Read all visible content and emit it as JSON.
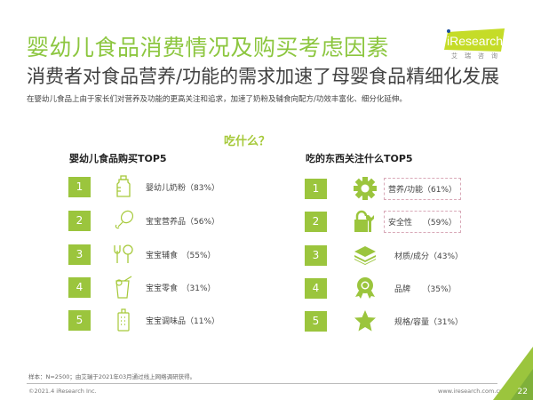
{
  "header": {
    "title": "婴幼儿食品消费情况及购买考虑因素",
    "subtitle": "消费者对食品营养/功能的需求加速了母婴食品精细化发展",
    "description": "在婴幼儿食品上由于家长们对营养及功能的更高关注和追求，加速了奶粉及辅食向配方/功效丰富化、细分化延伸。"
  },
  "logo": {
    "text": "iResearch",
    "sub": "艾瑞咨询"
  },
  "question": "吃什么？",
  "left": {
    "heading": "婴幼儿食品购买TOP5",
    "items": [
      {
        "rank": "1",
        "label": "婴幼儿奶粉（83%）",
        "icon": "baby-bottle-icon"
      },
      {
        "rank": "2",
        "label": "宝宝营养品（56%）",
        "icon": "drumstick-icon"
      },
      {
        "rank": "3",
        "label": "宝宝辅食　（55%）",
        "icon": "fork-spoon-icon"
      },
      {
        "rank": "4",
        "label": "宝宝零食　（31%）",
        "icon": "drink-cup-icon"
      },
      {
        "rank": "5",
        "label": "宝宝调味品（11%）",
        "icon": "grater-icon"
      }
    ]
  },
  "right": {
    "heading": "吃的东西关注什么TOP5",
    "items": [
      {
        "rank": "1",
        "label": "营养/功能（61%）",
        "icon": "gear-icon"
      },
      {
        "rank": "2",
        "label": "安全性　 （59%）",
        "icon": "lock-wrench-icon"
      },
      {
        "rank": "3",
        "label": "材质/成分（43%）",
        "icon": "layers-icon"
      },
      {
        "rank": "4",
        "label": "品牌　　（35%）",
        "icon": "award-badge-icon"
      },
      {
        "rank": "5",
        "label": "规格/容量（31%）",
        "icon": "star-icon"
      }
    ]
  },
  "footer": {
    "note": "样本：N=2500；由艾瑞于2021年03月通过线上网络调研获得。",
    "copyright": "©2021.4 iResearch Inc.",
    "url": "www.iresearch.com.cn",
    "page": "22"
  },
  "colors": {
    "accent": "#9bc53d",
    "title": "#8cc63f"
  }
}
